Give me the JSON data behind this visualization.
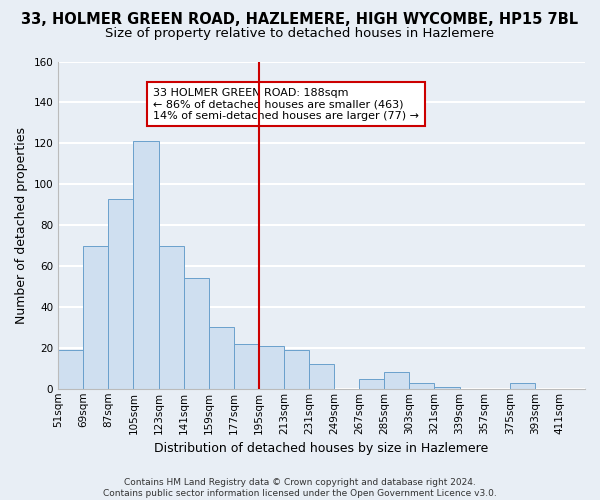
{
  "title": "33, HOLMER GREEN ROAD, HAZLEMERE, HIGH WYCOMBE, HP15 7BL",
  "subtitle": "Size of property relative to detached houses in Hazlemere",
  "xlabel": "Distribution of detached houses by size in Hazlemere",
  "ylabel": "Number of detached properties",
  "bin_labels": [
    "51sqm",
    "69sqm",
    "87sqm",
    "105sqm",
    "123sqm",
    "141sqm",
    "159sqm",
    "177sqm",
    "195sqm",
    "213sqm",
    "231sqm",
    "249sqm",
    "267sqm",
    "285sqm",
    "303sqm",
    "321sqm",
    "339sqm",
    "357sqm",
    "375sqm",
    "393sqm",
    "411sqm"
  ],
  "bin_edges": [
    51,
    69,
    87,
    105,
    123,
    141,
    159,
    177,
    195,
    213,
    231,
    249,
    267,
    285,
    303,
    321,
    339,
    357,
    375,
    393,
    411
  ],
  "bar_heights": [
    19,
    70,
    93,
    121,
    70,
    54,
    30,
    22,
    21,
    19,
    12,
    0,
    5,
    8,
    3,
    1,
    0,
    0,
    3,
    0,
    0
  ],
  "bar_color": "#cfdff0",
  "bar_edge_color": "#6aA0cc",
  "vline_x": 195,
  "vline_color": "#cc0000",
  "annotation_text": "33 HOLMER GREEN ROAD: 188sqm\n← 86% of detached houses are smaller (463)\n14% of semi-detached houses are larger (77) →",
  "annotation_box_edge_color": "#cc0000",
  "annotation_box_face_color": "#ffffff",
  "ylim": [
    0,
    160
  ],
  "yticks": [
    0,
    20,
    40,
    60,
    80,
    100,
    120,
    140,
    160
  ],
  "footer_text": "Contains HM Land Registry data © Crown copyright and database right 2024.\nContains public sector information licensed under the Open Government Licence v3.0.",
  "bg_color": "#e8eef5",
  "grid_color": "#ffffff",
  "title_fontsize": 10.5,
  "subtitle_fontsize": 9.5,
  "axis_label_fontsize": 9,
  "tick_fontsize": 7.5,
  "annotation_fontsize": 8,
  "footer_fontsize": 6.5
}
